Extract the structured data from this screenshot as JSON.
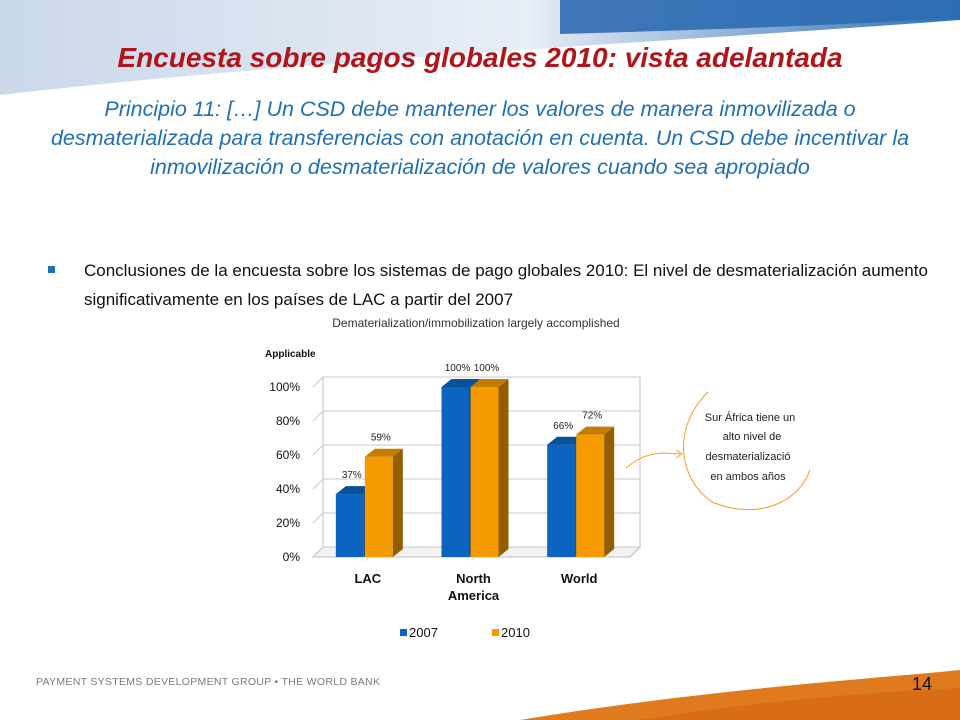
{
  "slide": {
    "title": "Encuesta sobre pagos globales 2010: vista adelantada",
    "subtitle": "Principio 11: […] Un CSD debe mantener los valores de manera inmovilizada o desmaterializada para transferencias con anotación en cuenta. Un CSD debe incentivar la inmovilización o desmaterialización de valores cuando sea apropiado",
    "bullet": "Conclusiones de la encuesta sobre los sistemas de pago globales 2010: El nivel de desmaterialización aumento significativamente en los países de LAC a partir del 2007",
    "footer": "PAYMENT SYSTEMS DEVELOPMENT GROUP • THE WORLD BANK",
    "page_number": "14",
    "callout": [
      "Sur África tiene un",
      "alto nivel de",
      "desmaterializació",
      "en ambos años"
    ]
  },
  "colors": {
    "title": "#b0151b",
    "subtitle": "#1f6fb6",
    "series_2007": "#0a64c0",
    "series_2010": "#f59b00",
    "footer_band": "#e07a1f"
  },
  "chart_data": {
    "type": "bar",
    "title": "Dematerialization/immobilization largely accomplished",
    "ylabel": "Applicable",
    "categories": [
      "LAC",
      "North America",
      "World"
    ],
    "series": [
      {
        "name": "2007",
        "values": [
          37,
          100,
          66
        ],
        "labels": [
          "37%",
          "100%",
          "66%"
        ]
      },
      {
        "name": "2010",
        "values": [
          59,
          100,
          72
        ],
        "labels": [
          "59%",
          "100%",
          "72%"
        ]
      }
    ],
    "ylim": [
      0,
      100
    ],
    "yticks": [
      "0%",
      "20%",
      "40%",
      "60%",
      "80%",
      "100%"
    ],
    "grid": true,
    "legend": "bottom",
    "style": "3d"
  }
}
